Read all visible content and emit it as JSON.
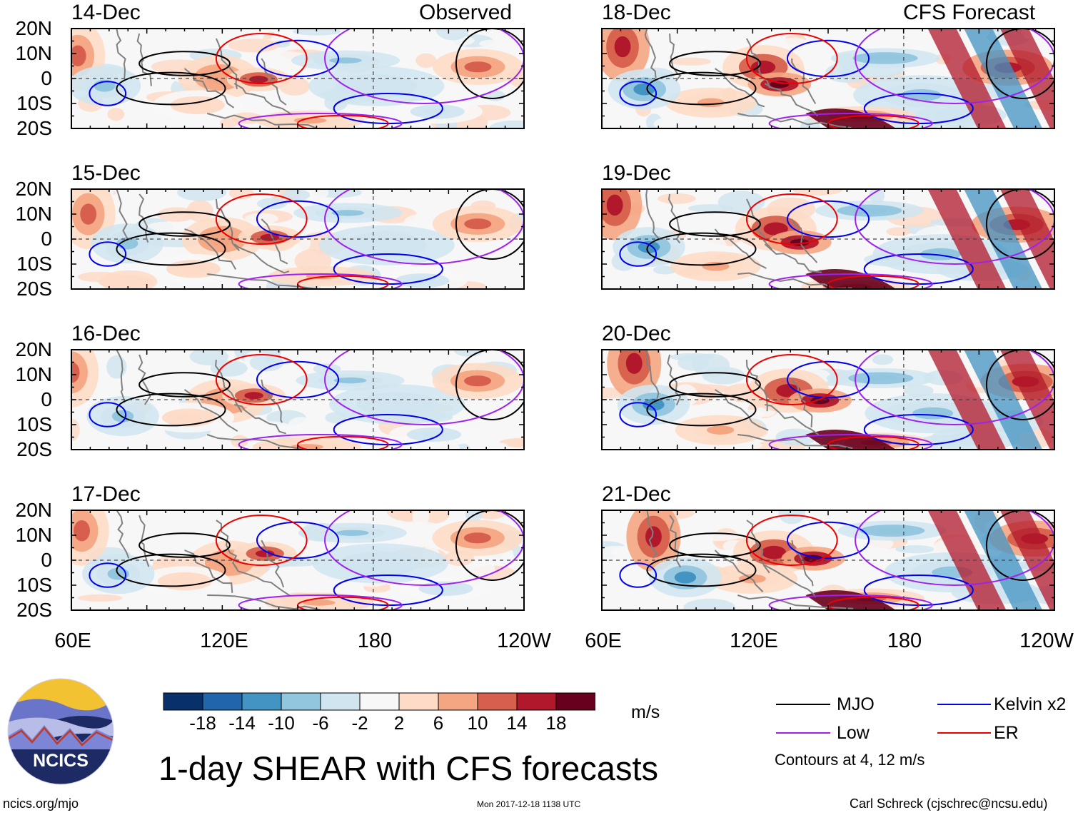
{
  "panel_titles": {
    "observed_tag": "Observed",
    "forecast_tag": "CFS Forecast",
    "left_dates": [
      "14-Dec",
      "15-Dec",
      "16-Dec",
      "17-Dec"
    ],
    "right_dates": [
      "18-Dec",
      "19-Dec",
      "20-Dec",
      "21-Dec"
    ]
  },
  "axes": {
    "lat_labels": [
      "20N",
      "10N",
      "0",
      "10S",
      "20S"
    ],
    "lon_labels": [
      "60E",
      "120E",
      "180",
      "120W"
    ]
  },
  "colorbar": {
    "colors": [
      "#08306b",
      "#2166ac",
      "#4393c3",
      "#92c5de",
      "#d1e5f0",
      "#f7f7f7",
      "#fddbc7",
      "#f4a582",
      "#d6604d",
      "#b2182b",
      "#67001f"
    ],
    "tick_labels": [
      "-18",
      "-14",
      "-10",
      "-6",
      "-2",
      "2",
      "6",
      "10",
      "14",
      "18"
    ],
    "units": "m/s"
  },
  "legend": {
    "items": [
      {
        "label": "MJO",
        "color": "#000000"
      },
      {
        "label": "Kelvin x2",
        "color": "#0000ee"
      },
      {
        "label": "Low",
        "color": "#a020f0"
      },
      {
        "label": "ER",
        "color": "#ee0000"
      }
    ],
    "note": "Contours at 4, 12 m/s"
  },
  "logo": {
    "text": "NCICS"
  },
  "main_title": "1-day SHEAR with CFS forecasts",
  "footer": {
    "left": "ncics.org/mjo",
    "center": "Mon 2017-12-18 1138 UTC",
    "right": "Carl Schreck (cjschrec@ncsu.edu)"
  }
}
